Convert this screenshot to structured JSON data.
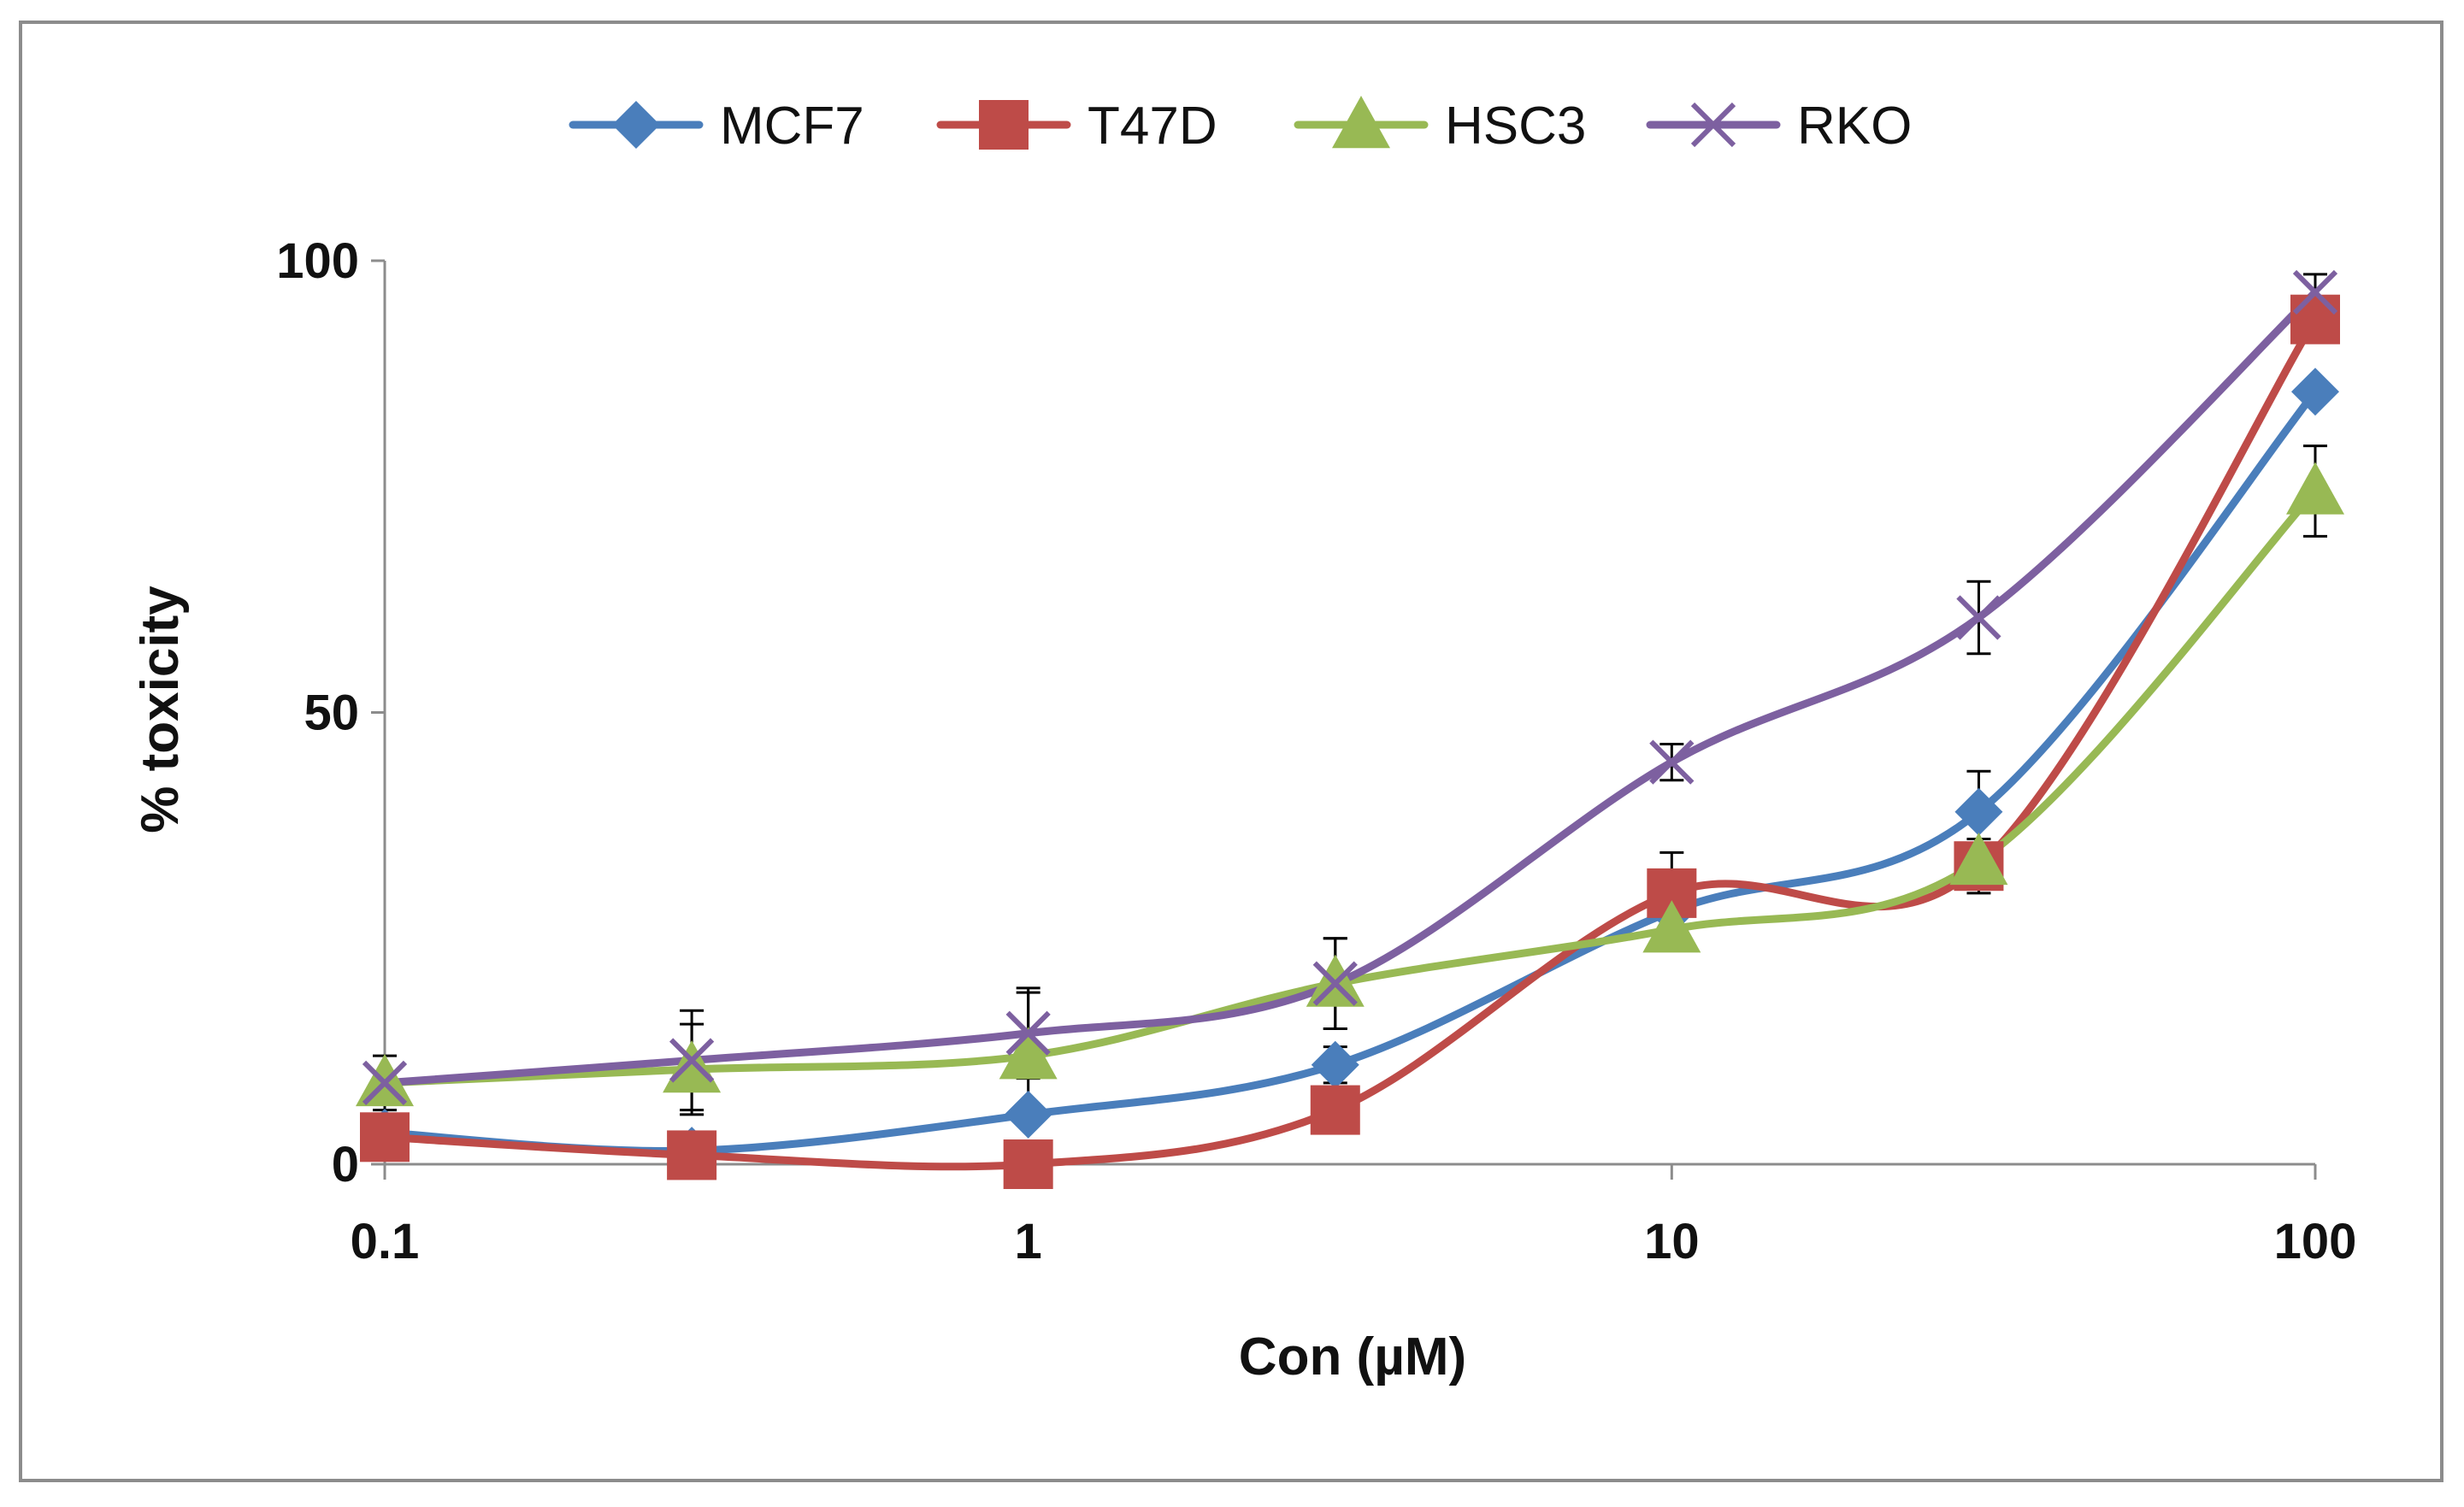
{
  "chart_data": {
    "type": "line",
    "title": "",
    "xlabel": "Con (µM)",
    "ylabel": "% toxicity",
    "x_scale": "log",
    "xlim": [
      0.1,
      100
    ],
    "ylim": [
      0,
      100
    ],
    "x_ticks": [
      0.1,
      1,
      10,
      100
    ],
    "x_tick_labels": [
      "0.1",
      "1",
      "10",
      "100"
    ],
    "y_ticks": [
      0,
      50,
      100
    ],
    "y_tick_labels": [
      "0",
      "50",
      "100"
    ],
    "grid": false,
    "legend_position": "top",
    "x": [
      0.1,
      0.3,
      1,
      3,
      10,
      30,
      100
    ],
    "series": [
      {
        "name": "MCF7",
        "color": "#4a7ebb",
        "marker": "diamond",
        "values": [
          3.5,
          1.5,
          5.5,
          11,
          28,
          39,
          85.5
        ],
        "errors": [
          0,
          0,
          0,
          2,
          0,
          4.5,
          0
        ]
      },
      {
        "name": "T47D",
        "color": "#be4b48",
        "marker": "square",
        "values": [
          3,
          1,
          0,
          6,
          30,
          33,
          93.5
        ],
        "errors": [
          0,
          0,
          0,
          0,
          4.5,
          3,
          0
        ]
      },
      {
        "name": "HSC3",
        "color": "#98b954",
        "marker": "triangle",
        "values": [
          9,
          10.5,
          12,
          20,
          26,
          33.5,
          74.5
        ],
        "errors": [
          3,
          5,
          7,
          5,
          0,
          0,
          5
        ]
      },
      {
        "name": "RKO",
        "color": "#7d60a0",
        "marker": "x",
        "values": [
          9,
          11.5,
          14.5,
          20,
          44.5,
          60.5,
          96.5
        ],
        "errors": [
          0,
          5.5,
          5,
          5,
          2,
          4,
          2
        ]
      }
    ]
  }
}
